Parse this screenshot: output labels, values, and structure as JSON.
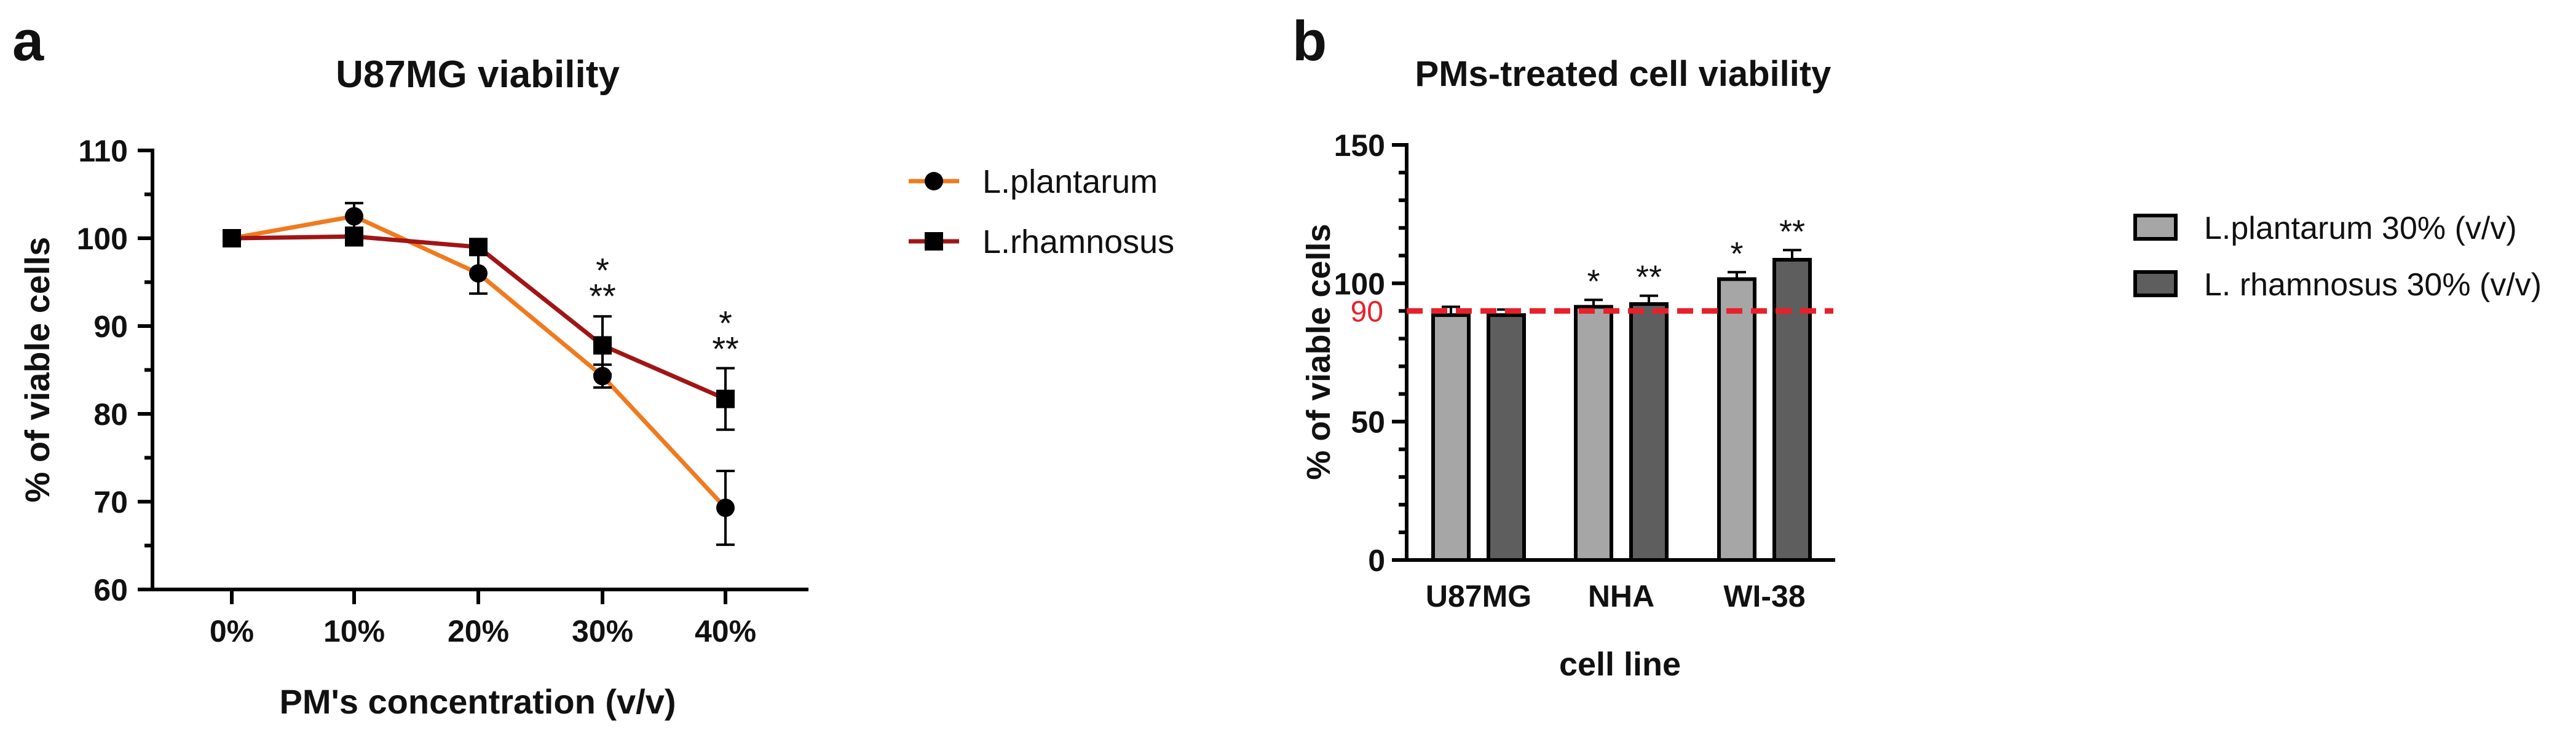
{
  "figure": {
    "panels": [
      {
        "letter": "a"
      },
      {
        "letter": "b"
      }
    ]
  },
  "colors": {
    "L.plantarum_line": "#f07a1e",
    "L.rhamnosus_line": "#a11515",
    "bar_light": "#a6a6a6",
    "bar_dark": "#5e5e5e",
    "reference_line": "#e8202a"
  },
  "chart_data": [
    {
      "panel": "a",
      "type": "line",
      "title": "U87MG viability",
      "xlabel": "PM's concentration (v/v)",
      "ylabel": "% of viable cells",
      "x": [
        "0%",
        "10%",
        "20%",
        "30%",
        "40%"
      ],
      "ylim": [
        60,
        110
      ],
      "yticks": [
        60,
        70,
        80,
        90,
        100,
        110
      ],
      "grid": false,
      "legend": "right",
      "series": [
        {
          "name": "L.plantarum",
          "marker": "circle",
          "color": "#f07a1e",
          "values": [
            100,
            102.5,
            96,
            84.3,
            69.3
          ],
          "errors": [
            0,
            1.5,
            2.3,
            1.3,
            4.2
          ]
        },
        {
          "name": "L.rhamnosus",
          "marker": "square",
          "color": "#a11515",
          "values": [
            100,
            100.2,
            99,
            87.8,
            81.7
          ],
          "errors": [
            0,
            1.0,
            0,
            3.3,
            3.5
          ]
        }
      ],
      "annotations": [
        {
          "x": "30%",
          "lines": [
            "*",
            "**"
          ]
        },
        {
          "x": "40%",
          "lines": [
            "*",
            "**"
          ]
        }
      ]
    },
    {
      "panel": "b",
      "type": "bar",
      "title": "PMs-treated cell viability",
      "xlabel": "cell line",
      "ylabel": "% of viable cells",
      "categories": [
        "U87MG",
        "NHA",
        "WI-38"
      ],
      "ylim": [
        0,
        150
      ],
      "yticks": [
        0,
        50,
        100,
        150
      ],
      "grid": false,
      "legend": "right",
      "reference_line": {
        "value": 90,
        "label": "90",
        "style": "dashed",
        "color": "#e8202a"
      },
      "series": [
        {
          "name": "L.plantarum 30% (v/v)",
          "color": "#a6a6a6",
          "values": [
            88.5,
            91.5,
            101.5
          ],
          "errors": [
            3,
            2.5,
            2.5
          ],
          "labels": [
            "",
            "*",
            "*"
          ]
        },
        {
          "name": "L. rhamnosus 30% (v/v)",
          "color": "#5e5e5e",
          "values": [
            88.5,
            92.5,
            108.5
          ],
          "errors": [
            2,
            3,
            3.5
          ],
          "labels": [
            "",
            "**",
            "**"
          ]
        }
      ]
    }
  ]
}
